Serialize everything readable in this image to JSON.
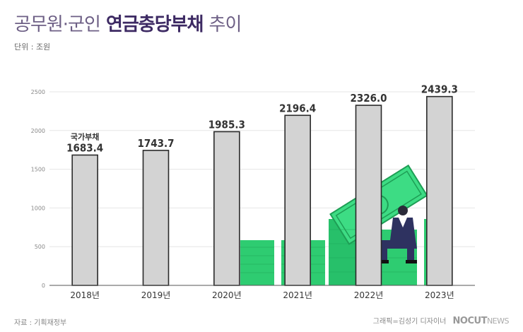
{
  "header": {
    "title_part1": "공무원·군인",
    "title_part2": "연금충당부채",
    "title_part3": "추이",
    "unit": "단위 : 조원"
  },
  "footer": {
    "source": "자료 : 기획재정부",
    "credit": "그래픽=김성기 디자이너",
    "logo": "NOCUT",
    "logo_suffix": "NEWS"
  },
  "colors": {
    "bar_fill": "#d3d3d3",
    "bar_stroke": "#2a2a2a",
    "grid": "#e6e6e6",
    "money": "#2ecc71"
  },
  "chart_data": {
    "type": "bar",
    "categories": [
      "2018년",
      "2019년",
      "2020년",
      "2021년",
      "2022년",
      "2023년"
    ],
    "values": [
      1683.4,
      1743.7,
      1985.3,
      2196.4,
      2326.0,
      2439.3
    ],
    "value_labels": [
      "1683.4",
      "1743.7",
      "1985.3",
      "2196.4",
      "2326.0",
      "2439.3"
    ],
    "yticks": [
      0,
      500,
      1000,
      1500,
      2000,
      2500
    ],
    "ylim": [
      0,
      2500
    ],
    "annotation": "국가부채",
    "annotation_index": 0,
    "grid": true,
    "title": "공무원·군인 연금충당부채 추이",
    "ylabel": "",
    "xlabel": ""
  }
}
